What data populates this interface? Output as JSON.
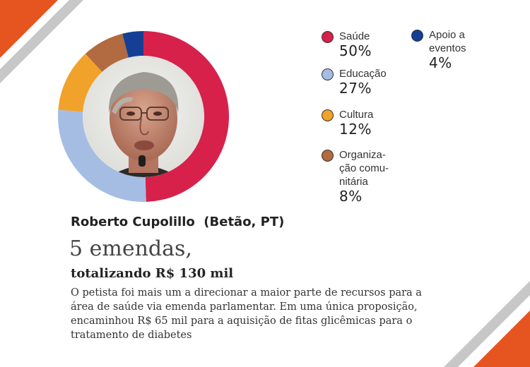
{
  "colors": {
    "saude": "#d7214b",
    "educacao": "#a5bde3",
    "cultura": "#f0a22b",
    "organizacao": "#b26a40",
    "apoio": "#143f94",
    "stripe_orange": "#e6541f",
    "stripe_gray": "#c7c7c7"
  },
  "photo_icon": "portrait-photo",
  "chart_data": {
    "type": "pie",
    "categories": [
      "Saúde",
      "Educação",
      "Cultura",
      "Organiza-\nção comu-\nnitária",
      "Apoio a\neventos"
    ],
    "values": [
      50,
      27,
      12,
      8,
      4
    ],
    "value_labels": [
      "50%",
      "27%",
      "12%",
      "8%",
      "4%"
    ],
    "colors": [
      "#d7214b",
      "#a5bde3",
      "#f0a22b",
      "#b26a40",
      "#143f94"
    ],
    "title": "",
    "legend_position": "right"
  },
  "profile": {
    "name": "Roberto Cupolillo  (Betão, PT)",
    "headline": "5 emendas,",
    "subhead": "totalizando R$ 130 mil",
    "body": "O petista foi mais um a direcionar a maior parte de recursos para a área de saúde via emenda parlamentar. Em uma única proposição, encaminhou R$ 65 mil para a aquisição de fitas glicêmicas para o tratamento de diabetes"
  }
}
